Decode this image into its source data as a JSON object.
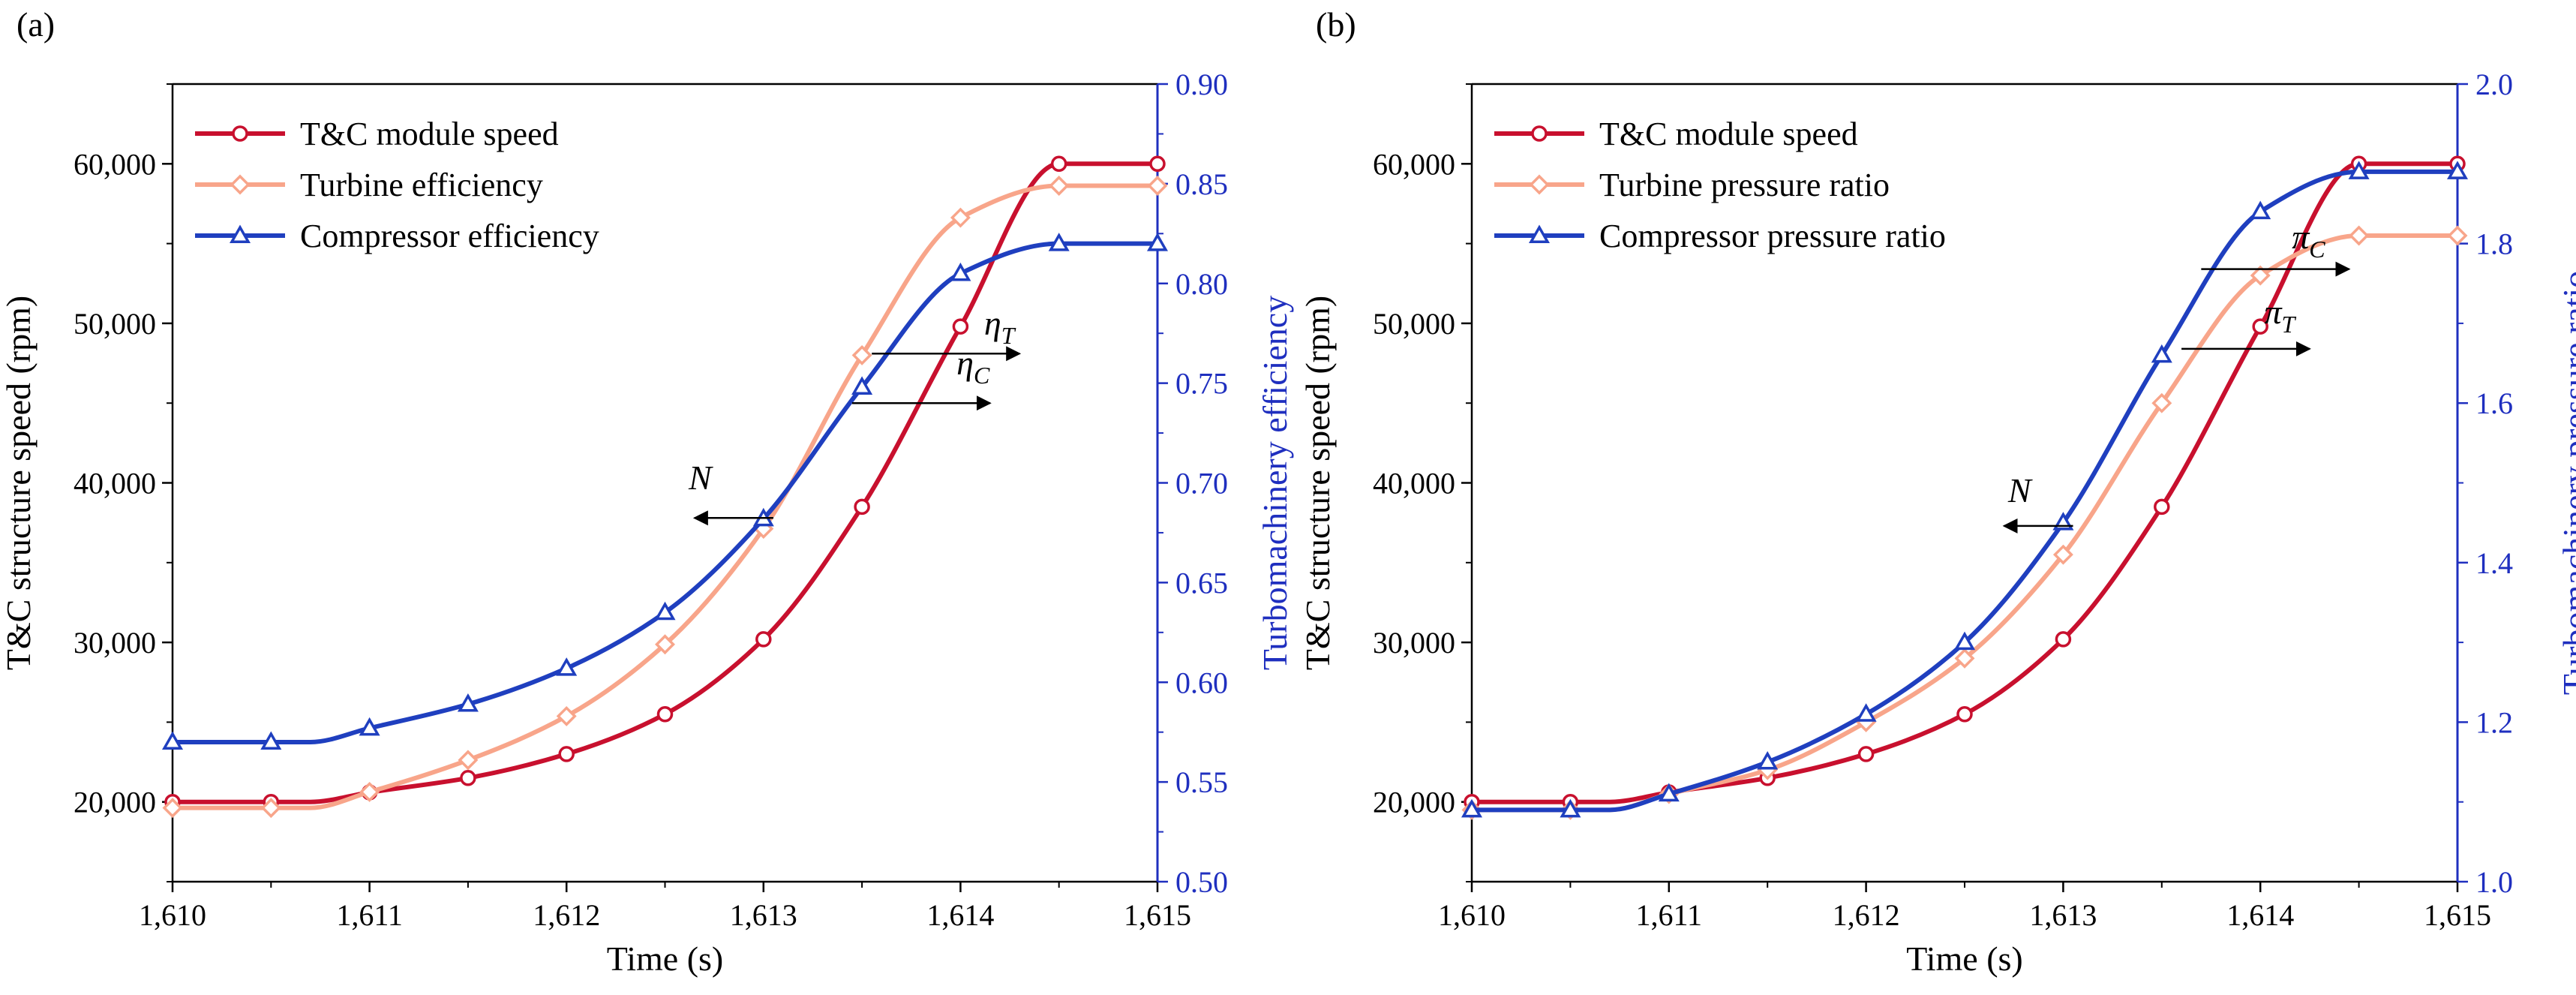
{
  "chart_data": [
    {
      "panel_label": "(a)",
      "type": "line",
      "xlabel": "Time (s)",
      "ylabel": "T&C structure speed (rpm)",
      "y2label": "Turbomachinery efficiency",
      "xlim": [
        1610,
        1615
      ],
      "ylim": [
        15000,
        65000
      ],
      "y2lim": [
        0.5,
        0.9
      ],
      "x_ticks": [
        "1,610",
        "1,611",
        "1,612",
        "1,613",
        "1,614",
        "1,615"
      ],
      "y_ticks": [
        "20,000",
        "30,000",
        "40,000",
        "50,000",
        "60,000"
      ],
      "y2_ticks": [
        "0.50",
        "0.55",
        "0.60",
        "0.65",
        "0.70",
        "0.75",
        "0.80",
        "0.85",
        "0.90"
      ],
      "legend_position": "top-left",
      "legend": [
        "T&C module speed",
        "Turbine efficiency",
        "Compressor efficiency"
      ],
      "series": [
        {
          "name": "T&C module speed",
          "axis": "left",
          "color": "#c8102e",
          "marker": "circle",
          "x": [
            1610,
            1610.5,
            1610.7,
            1611,
            1611.5,
            1612,
            1612.5,
            1613,
            1613.5,
            1614,
            1614.5,
            1615
          ],
          "values": [
            20000,
            20000,
            20000,
            20600,
            21500,
            23000,
            25500,
            30200,
            38500,
            49800,
            60000,
            60000
          ],
          "marker_x": [
            1610,
            1610.5,
            1611,
            1611.5,
            1612,
            1612.5,
            1613,
            1613.5,
            1614,
            1614.5,
            1615
          ]
        },
        {
          "name": "Turbine efficiency",
          "axis": "right",
          "color": "#f8a58a",
          "marker": "diamond",
          "x": [
            1610,
            1610.5,
            1610.7,
            1611,
            1611.5,
            1612,
            1612.5,
            1613,
            1613.5,
            1614,
            1614.5,
            1615
          ],
          "values": [
            0.537,
            0.537,
            0.537,
            0.545,
            0.561,
            0.583,
            0.619,
            0.677,
            0.764,
            0.833,
            0.849,
            0.849
          ],
          "marker_x": [
            1610,
            1610.5,
            1611,
            1611.5,
            1612,
            1612.5,
            1613,
            1613.5,
            1614,
            1614.5,
            1615
          ]
        },
        {
          "name": "Compressor efficiency",
          "axis": "right",
          "color": "#1f3fbf",
          "marker": "triangle",
          "x": [
            1610,
            1610.5,
            1610.7,
            1611,
            1611.5,
            1612,
            1612.5,
            1613,
            1613.5,
            1614,
            1614.5,
            1615
          ],
          "values": [
            0.57,
            0.57,
            0.57,
            0.577,
            0.589,
            0.607,
            0.635,
            0.682,
            0.748,
            0.805,
            0.82,
            0.82
          ],
          "marker_x": [
            1610,
            1610.5,
            1611,
            1611.5,
            1612,
            1612.5,
            1613,
            1613.5,
            1614,
            1614.5,
            1615
          ]
        }
      ],
      "annotations": [
        {
          "label": "N",
          "sub": "",
          "from": [
            1613.05,
            37800
          ],
          "to": [
            1612.65,
            37800
          ],
          "tx": 1612.62,
          "ty": 39600
        },
        {
          "label": "η",
          "sub": "T",
          "from": [
            1613.55,
            48100
          ],
          "to": [
            1614.3,
            48100
          ],
          "tx": 1614.12,
          "ty": 49300
        },
        {
          "label": "η",
          "sub": "C",
          "from": [
            1613.45,
            45000
          ],
          "to": [
            1614.15,
            45000
          ],
          "tx": 1613.98,
          "ty": 46800
        }
      ]
    },
    {
      "panel_label": "(b)",
      "type": "line",
      "xlabel": "Time (s)",
      "ylabel": "T&C structure speed (rpm)",
      "y2label": "Turbomachinery pressure ratio",
      "xlim": [
        1610,
        1615
      ],
      "ylim": [
        15000,
        65000
      ],
      "y2lim": [
        1.0,
        2.0
      ],
      "x_ticks": [
        "1,610",
        "1,611",
        "1,612",
        "1,613",
        "1,614",
        "1,615"
      ],
      "y_ticks": [
        "20,000",
        "30,000",
        "40,000",
        "50,000",
        "60,000"
      ],
      "y2_ticks": [
        "1.0",
        "1.2",
        "1.4",
        "1.6",
        "1.8",
        "2.0"
      ],
      "legend_position": "top-left",
      "legend": [
        "T&C module speed",
        "Turbine pressure ratio",
        "Compressor pressure ratio"
      ],
      "series": [
        {
          "name": "T&C module speed",
          "axis": "left",
          "color": "#c8102e",
          "marker": "circle",
          "x": [
            1610,
            1610.5,
            1610.7,
            1611,
            1611.5,
            1612,
            1612.5,
            1613,
            1613.5,
            1614,
            1614.5,
            1615
          ],
          "values": [
            20000,
            20000,
            20000,
            20600,
            21500,
            23000,
            25500,
            30200,
            38500,
            49800,
            60000,
            60000
          ],
          "marker_x": [
            1610,
            1610.5,
            1611,
            1611.5,
            1612,
            1612.5,
            1613,
            1613.5,
            1614,
            1614.5,
            1615
          ]
        },
        {
          "name": "Turbine pressure ratio",
          "axis": "right",
          "color": "#f8a58a",
          "marker": "diamond",
          "x": [
            1610,
            1610.5,
            1610.7,
            1611,
            1611.5,
            1612,
            1612.5,
            1613,
            1613.5,
            1614,
            1614.5,
            1615
          ],
          "values": [
            1.09,
            1.09,
            1.09,
            1.11,
            1.14,
            1.2,
            1.28,
            1.41,
            1.6,
            1.76,
            1.81,
            1.81
          ],
          "marker_x": [
            1610,
            1610.5,
            1611,
            1611.5,
            1612,
            1612.5,
            1613,
            1613.5,
            1614,
            1614.5,
            1615
          ]
        },
        {
          "name": "Compressor pressure ratio",
          "axis": "right",
          "color": "#1f3fbf",
          "marker": "triangle",
          "x": [
            1610,
            1610.5,
            1610.7,
            1611,
            1611.5,
            1612,
            1612.5,
            1613,
            1613.5,
            1614,
            1614.5,
            1615
          ],
          "values": [
            1.09,
            1.09,
            1.09,
            1.11,
            1.15,
            1.21,
            1.3,
            1.45,
            1.66,
            1.84,
            1.89,
            1.89
          ],
          "marker_x": [
            1610,
            1610.5,
            1611,
            1611.5,
            1612,
            1612.5,
            1613,
            1613.5,
            1614,
            1614.5,
            1615
          ]
        }
      ],
      "annotations": [
        {
          "label": "N",
          "sub": "",
          "from": [
            1613.05,
            37300
          ],
          "to": [
            1612.7,
            37300
          ],
          "tx": 1612.72,
          "ty": 38800
        },
        {
          "label": "π",
          "sub": "C",
          "from": [
            1613.7,
            53400
          ],
          "to": [
            1614.45,
            53400
          ],
          "tx": 1614.16,
          "ty": 54700
        },
        {
          "label": "π",
          "sub": "T",
          "from": [
            1613.6,
            48400
          ],
          "to": [
            1614.25,
            48400
          ],
          "tx": 1614.02,
          "ty": 50000
        }
      ]
    }
  ]
}
